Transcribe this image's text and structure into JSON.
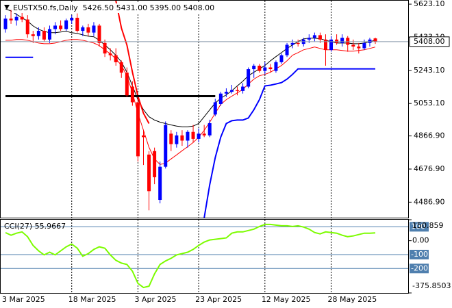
{
  "chart_data": [
    {
      "type": "candlestick",
      "title": "EUSTX50.fs,Daily  5426.50 5431.00 5395.00 5408.00",
      "categories": [
        "3 Mar 2025",
        null,
        null,
        null,
        null,
        null,
        null,
        null,
        null,
        null,
        null,
        null,
        "18 Mar 2025",
        null,
        null,
        null,
        null,
        null,
        null,
        null,
        null,
        null,
        null,
        null,
        "3 Apr 2025",
        null,
        null,
        null,
        null,
        null,
        null,
        null,
        null,
        null,
        null,
        "23 Apr 2025",
        null,
        null,
        null,
        null,
        null,
        null,
        null,
        null,
        null,
        null,
        null,
        "12 May 2025",
        null,
        null,
        null,
        null,
        null,
        null,
        null,
        null,
        null,
        null,
        null,
        "28 May 2025",
        null,
        null,
        null,
        null,
        null,
        null,
        null,
        null
      ],
      "open": [
        5480,
        5540,
        5530,
        5550,
        5535,
        5450,
        5440,
        5470,
        5420,
        5480,
        5500,
        5480,
        5530,
        5545,
        5470,
        5490,
        5460,
        5500,
        5400,
        5340,
        5330,
        5290,
        5230,
        5150,
        5060,
        4870,
        4760,
        4780,
        4500,
        4690,
        4880,
        4820,
        4870,
        4840,
        4890,
        4850,
        4880,
        4870,
        4990,
        5050,
        5110,
        5120,
        5130,
        5125,
        5150,
        5250,
        5270,
        5240,
        5260,
        5240,
        5290,
        5330,
        5390,
        5400,
        5395,
        5420,
        5430,
        5445,
        5420,
        5360,
        5420,
        5400,
        5430,
        5390,
        5380,
        5370,
        5400,
        5426.5
      ],
      "high": [
        5560,
        5590,
        5570,
        5580,
        5560,
        5470,
        5490,
        5490,
        5500,
        5520,
        5530,
        5540,
        5560,
        5570,
        5500,
        5510,
        5520,
        5510,
        5420,
        5370,
        5370,
        5300,
        5260,
        5180,
        5090,
        4900,
        4780,
        4800,
        4720,
        4950,
        4900,
        4890,
        4900,
        4900,
        4930,
        4910,
        4930,
        4960,
        5080,
        5120,
        5140,
        5160,
        5150,
        5170,
        5260,
        5280,
        5280,
        5290,
        5280,
        5300,
        5340,
        5400,
        5420,
        5420,
        5430,
        5450,
        5460,
        5460,
        5450,
        5440,
        5450,
        5450,
        5440,
        5420,
        5400,
        5420,
        5430,
        5431
      ],
      "low": [
        5460,
        5510,
        5500,
        5520,
        5430,
        5400,
        5420,
        5410,
        5400,
        5450,
        5470,
        5470,
        5510,
        5460,
        5440,
        5440,
        5440,
        5380,
        5320,
        5300,
        5270,
        5200,
        5090,
        5040,
        4720,
        4700,
        4440,
        4590,
        4480,
        4680,
        4780,
        4800,
        4810,
        4800,
        4830,
        4830,
        4860,
        4860,
        4980,
        5040,
        5090,
        5110,
        5100,
        5110,
        5140,
        5200,
        5230,
        5220,
        5230,
        5230,
        5280,
        5320,
        5370,
        5380,
        5380,
        5400,
        5410,
        5400,
        5270,
        5350,
        5390,
        5380,
        5350,
        5360,
        5340,
        5360,
        5380,
        5395
      ],
      "close": [
        5540,
        5530,
        5550,
        5535,
        5450,
        5440,
        5470,
        5420,
        5480,
        5500,
        5480,
        5530,
        5545,
        5470,
        5490,
        5460,
        5500,
        5400,
        5340,
        5330,
        5290,
        5230,
        5100,
        5060,
        4750,
        4860,
        4550,
        4630,
        4690,
        4930,
        4820,
        4870,
        4840,
        4890,
        4850,
        4880,
        4870,
        4940,
        5060,
        5110,
        5120,
        5130,
        5125,
        5150,
        5250,
        5270,
        5240,
        5260,
        5250,
        5290,
        5330,
        5390,
        5400,
        5395,
        5420,
        5430,
        5445,
        5420,
        5360,
        5420,
        5400,
        5430,
        5390,
        5380,
        5370,
        5400,
        5420,
        5408
      ],
      "up_color": "#0000ff",
      "down_color": "#ff0000",
      "lines": [
        {
          "color": "#000000",
          "width": 1,
          "values": [
            5596,
            5584,
            5565,
            5545,
            5526,
            5498,
            5479,
            5467,
            5459,
            5459,
            5463,
            5467,
            5459,
            5455,
            5447,
            5439,
            5436,
            5416,
            5389,
            5361,
            5330,
            5291,
            5232,
            5154,
            5075,
            5017,
            4977,
            4958,
            4946,
            4938,
            4930,
            4923,
            4919,
            4919,
            4923,
            4938,
            4977,
            5017,
            5056,
            5083,
            5103,
            5126,
            5154,
            5181,
            5212,
            5232,
            5252,
            5271,
            5298,
            5322,
            5345,
            5369,
            5389,
            5408,
            5424,
            5428,
            5428,
            5424,
            5416,
            5408,
            5400,
            5400,
            5400,
            5396,
            5396,
            5400,
            5408,
            5416
          ]
        },
        {
          "color": "#ff0000",
          "width": 1,
          "values": [
            5416,
            5416,
            5420,
            5420,
            5416,
            5408,
            5400,
            5396,
            5396,
            5400,
            5408,
            5416,
            5420,
            5420,
            5416,
            5408,
            5400,
            5385,
            5361,
            5338,
            5310,
            5271,
            5212,
            5114,
            4997,
            4899,
            4801,
            4735,
            4703,
            4711,
            4735,
            4758,
            4782,
            4805,
            4829,
            4860,
            4899,
            4946,
            4997,
            5048,
            5075,
            5095,
            5114,
            5134,
            5165,
            5193,
            5212,
            5220,
            5232,
            5252,
            5271,
            5298,
            5330,
            5345,
            5361,
            5369,
            5377,
            5369,
            5361,
            5361,
            5361,
            5357,
            5353,
            5353,
            5357,
            5361,
            5369,
            5377
          ]
        },
        {
          "color": "#ff0000",
          "width": 2,
          "values": [
            null,
            null,
            null,
            null,
            null,
            null,
            null,
            null,
            null,
            null,
            null,
            null,
            null,
            null,
            null,
            null,
            null,
            null,
            null,
            null,
            5643,
            5486,
            5389,
            5232,
            5095,
            4997,
            4938,
            null,
            null,
            null,
            null,
            null,
            null,
            null,
            null,
            null,
            null,
            null,
            null,
            null,
            null,
            null,
            null,
            null,
            null,
            null,
            null,
            null,
            null,
            null,
            null,
            null,
            null,
            null,
            null,
            null,
            null,
            null,
            null,
            null,
            null,
            null,
            null,
            null,
            null,
            null,
            null,
            null
          ]
        },
        {
          "color": "#0000ff",
          "width": 2,
          "values": [
            5318,
            5318,
            5318,
            5318,
            5318,
            5318,
            null,
            null,
            null,
            null,
            null,
            null,
            null,
            null,
            null,
            null,
            null,
            null,
            null,
            null,
            null,
            null,
            null,
            null,
            null,
            null,
            null,
            null,
            null,
            null,
            null,
            null,
            null,
            null,
            null,
            null,
            4398,
            4586,
            4743,
            4860,
            4938,
            4954,
            4958,
            4958,
            4970,
            5017,
            5075,
            5154,
            5158,
            5165,
            5173,
            5193,
            5220,
            5252,
            5252,
            5252,
            5252,
            5252,
            5252,
            5252,
            5252,
            5252,
            5252,
            5252,
            5252,
            5252,
            5252,
            5252
          ]
        },
        {
          "color": "#000000",
          "width": 3,
          "values": [
            5095,
            5095,
            5095,
            5095,
            5095,
            5095,
            5095,
            5095,
            5095,
            5095,
            5095,
            5095,
            5095,
            5095,
            5095,
            5095,
            5095,
            5095,
            5095,
            5095,
            5095,
            5095,
            5095,
            5095,
            5095,
            5095,
            5095,
            5095,
            5095,
            5095,
            5095,
            5095,
            5095,
            5095,
            5095,
            5095,
            5095,
            5095,
            5095,
            null,
            null,
            null,
            null,
            null,
            null,
            null,
            null,
            null,
            null,
            null,
            null,
            null,
            null,
            null,
            null,
            null,
            null,
            null,
            null,
            null,
            null,
            null,
            null,
            null,
            null,
            null,
            null,
            null
          ]
        }
      ],
      "last_price": {
        "value": 5408,
        "label": "5408.00"
      },
      "ylim": [
        4398,
        5643
      ],
      "yticks": [
        {
          "value": 5623.1,
          "label": "5623.10"
        },
        {
          "value": 5433.1,
          "label": "5433.10"
        },
        {
          "value": 5243.1,
          "label": "5243.10"
        },
        {
          "value": 5053.1,
          "label": "5053.10"
        },
        {
          "value": 4866.9,
          "label": "4866.90"
        },
        {
          "value": 4676.9,
          "label": "4676.90"
        },
        {
          "value": 4486.9,
          "label": "4486.90"
        }
      ]
    },
    {
      "type": "line",
      "title": "CCI(27) 55.9667",
      "color": "#7cfc00",
      "values": [
        58,
        39,
        54,
        63,
        29,
        -34,
        -73,
        -102,
        -83,
        -102,
        -73,
        -44,
        -24,
        -54,
        -112,
        -93,
        -63,
        -44,
        -54,
        -102,
        -141,
        -161,
        -171,
        -220,
        -307,
        -337,
        -327,
        -239,
        -171,
        -146,
        -127,
        -102,
        -93,
        -83,
        -63,
        -34,
        -10,
        5,
        10,
        15,
        20,
        54,
        63,
        63,
        73,
        83,
        102,
        117,
        117,
        112,
        107,
        107,
        102,
        107,
        98,
        83,
        59,
        49,
        63,
        59,
        54,
        39,
        29,
        34,
        44,
        54,
        54,
        56
      ],
      "levels": [
        100,
        -100,
        -200
      ],
      "level_color": "#4f7fae",
      "ylim": [
        -375.8503,
        150.859
      ],
      "yticks": [
        150.859,
        {
          "value": 0,
          "label": "0.00"
        },
        -375.8503
      ]
    }
  ]
}
